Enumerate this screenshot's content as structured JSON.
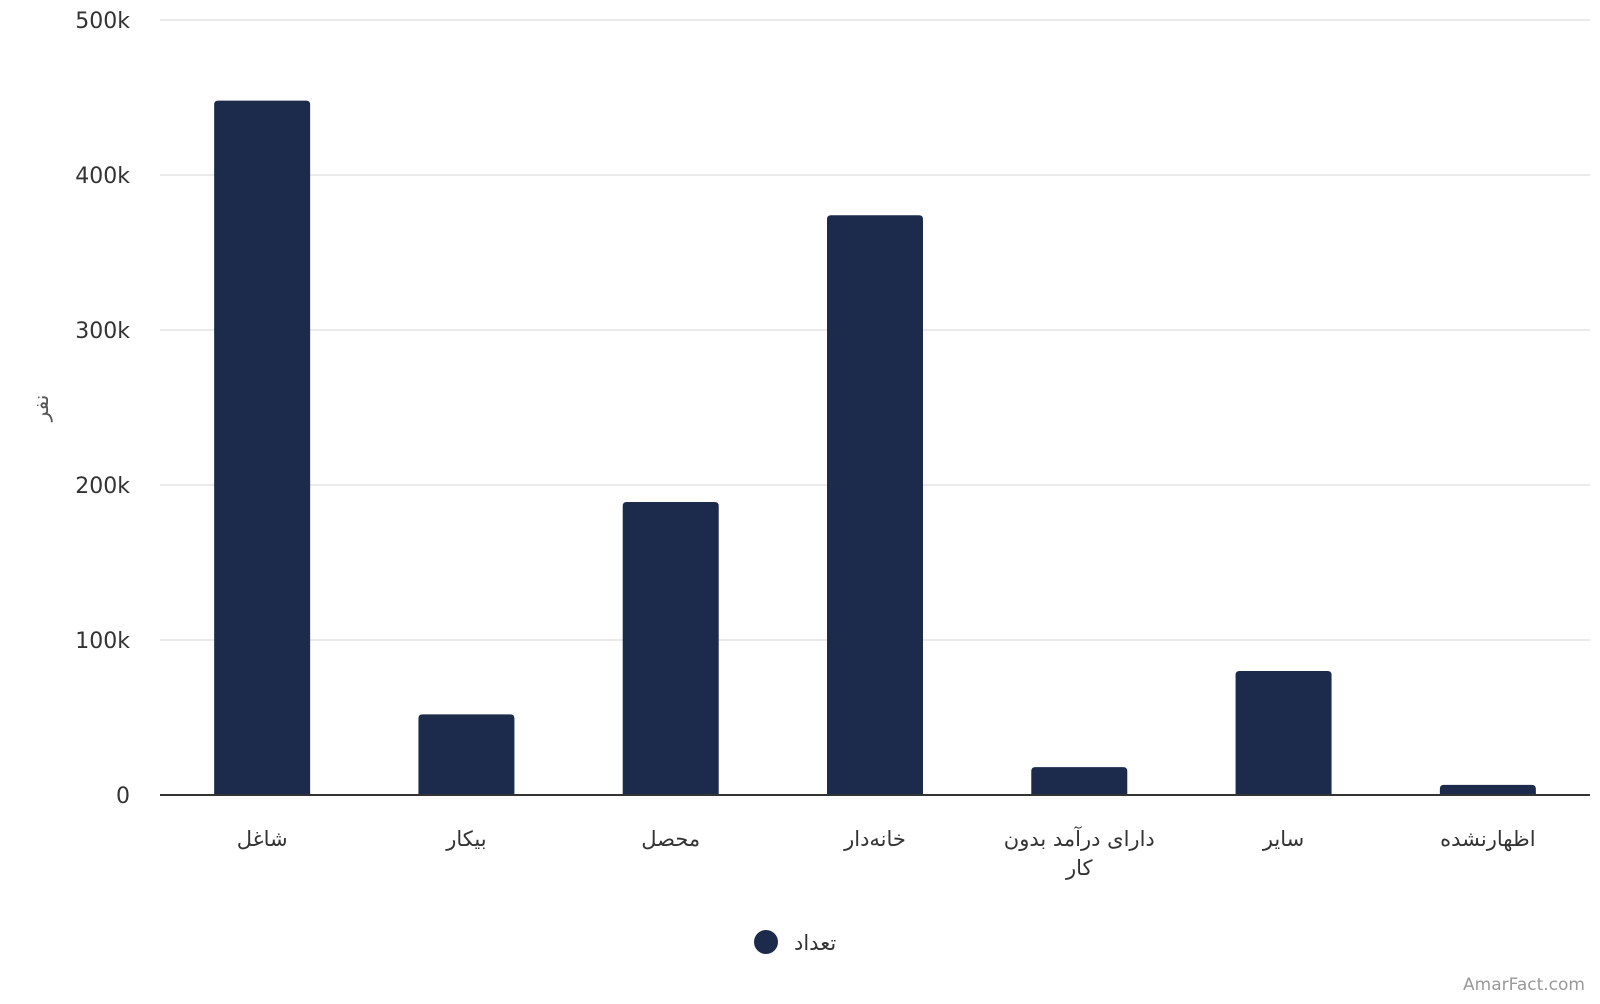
{
  "chart_data": {
    "type": "bar",
    "title": "",
    "xlabel": "",
    "ylabel": "نفر",
    "categories": [
      "شاغل",
      "بیکار",
      "محصل",
      "خانه‌دار",
      "دارای درآمد بدون کار",
      "سایر",
      "اظهارنشده"
    ],
    "series": [
      {
        "name": "تعداد",
        "color": "#1c2a4c",
        "values": [
          448000,
          52000,
          189000,
          374000,
          18000,
          80000,
          6500
        ]
      }
    ],
    "ylim": [
      0,
      500000
    ],
    "yticks": [
      0,
      100000,
      200000,
      300000,
      400000,
      500000
    ],
    "ytick_labels": [
      "0",
      "100k",
      "200k",
      "300k",
      "400k",
      "500k"
    ],
    "grid": true,
    "legend_position": "bottom-center"
  },
  "credit": "AmarFact.com"
}
